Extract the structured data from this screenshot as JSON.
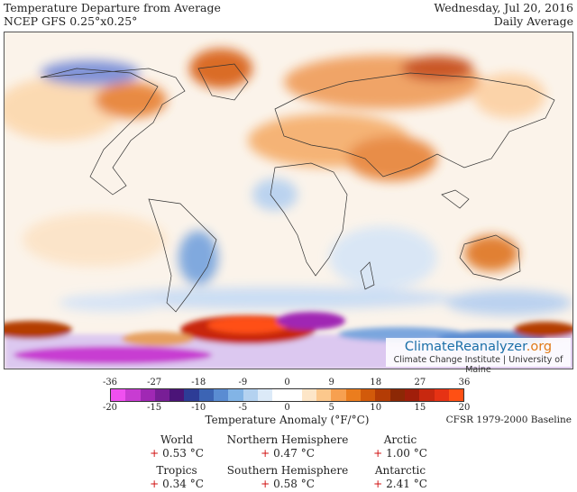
{
  "header": {
    "title": "Temperature Departure from Average",
    "model": "NCEP GFS 0.25°x0.25°",
    "date": "Wednesday, Jul 20, 2016",
    "period": "Daily Average"
  },
  "logo": {
    "name_part1": "Climate",
    "name_part2": "Reanalyzer",
    "name_part3": ".org",
    "sub": "Climate Change Institute | University of Maine"
  },
  "scale": {
    "fahrenheit_ticks": [
      "-36",
      "-27",
      "-18",
      "-9",
      "0",
      "9",
      "18",
      "27",
      "36"
    ],
    "celsius_ticks": [
      "-20",
      "-15",
      "-10",
      "-5",
      "0",
      "5",
      "10",
      "15",
      "20"
    ],
    "label": "Temperature Anomaly (°F/°C)",
    "baseline": "CFSR 1979-2000 Baseline",
    "colors": [
      "#f050f0",
      "#c83cd2",
      "#a028b4",
      "#781e96",
      "#4b1478",
      "#2d3c96",
      "#3c64b4",
      "#5a8cd2",
      "#82b4e6",
      "#b4d2f0",
      "#dceaf8",
      "#ffffff",
      "#ffffff",
      "#fde6c8",
      "#fcc88c",
      "#f7a050",
      "#eb7d1e",
      "#d25a0a",
      "#b43c05",
      "#8c2805",
      "#a01e0a",
      "#c8280f",
      "#e63214",
      "#ff5014"
    ]
  },
  "stats": [
    {
      "name": "World",
      "sign": "+",
      "value": "0.53 °C"
    },
    {
      "name": "Northern Hemisphere",
      "sign": "+",
      "value": "0.47 °C"
    },
    {
      "name": "Arctic",
      "sign": "+",
      "value": "1.00 °C"
    },
    {
      "name": "Tropics",
      "sign": "+",
      "value": "0.34 °C"
    },
    {
      "name": "Southern Hemisphere",
      "sign": "+",
      "value": "0.58 °C"
    },
    {
      "name": "Antarctic",
      "sign": "+",
      "value": "2.41 °C"
    }
  ]
}
